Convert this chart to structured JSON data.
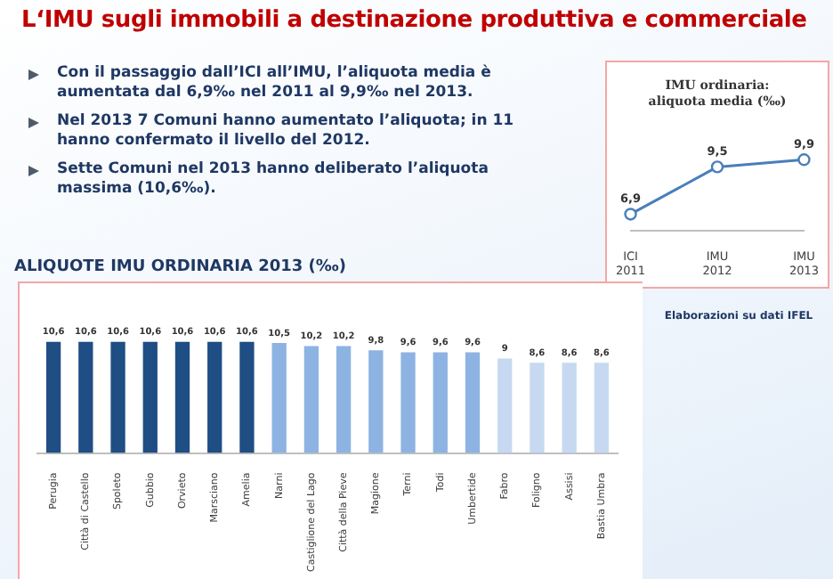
{
  "chart_data": [
    {
      "type": "other",
      "title": "L‘IMU sugli immobili a destinazione produttiva e commerciale",
      "annotations": [
        "Con il passaggio dall’ICI all’IMU, l’aliquota media è aumentata dal 6,9‰ nel 2011 al 9,9‰ nel 2013.",
        "Nel 2013 7 Comuni hanno aumentato l’aliquota; in 11 hanno confermato il livello del 2012.",
        "Sette Comuni nel 2013 hanno deliberato l’aliquota massima (10,6‰)."
      ]
    },
    {
      "type": "line",
      "title": "IMU ordinaria: aliquota media (‰)",
      "categories": [
        "ICI 2011",
        "IMU 2012",
        "IMU 2013"
      ],
      "values": [
        6.9,
        9.5,
        9.9
      ],
      "value_labels": [
        "6,9",
        "9,5",
        "9,9"
      ],
      "color": "#4a7ebb",
      "marker": "circle",
      "tick_labels": "x",
      "annotations": [
        "Elaborazioni su dati IFEL"
      ]
    },
    {
      "type": "bar",
      "title": "ALIQUOTE IMU ORDINARIA 2013 (‰)",
      "categories": [
        "Perugia",
        "Città di Castello",
        "Spoleto",
        "Gubbio",
        "Orvieto",
        "Marsciano",
        "Amelia",
        "Narni",
        "Castiglione del Lago",
        "Città della Pieve",
        "Magione",
        "Terni",
        "Todi",
        "Umbertide",
        "Fabro",
        "Foligno",
        "Assisi",
        "Bastia Umbra"
      ],
      "values": [
        10.6,
        10.6,
        10.6,
        10.6,
        10.6,
        10.6,
        10.6,
        10.5,
        10.2,
        10.2,
        9.8,
        9.6,
        9.6,
        9.6,
        9,
        8.6,
        8.6,
        8.6
      ],
      "value_labels": [
        "10,6",
        "10,6",
        "10,6",
        "10,6",
        "10,6",
        "10,6",
        "10,6",
        "10,5",
        "10,2",
        "10,2",
        "9,8",
        "9,6",
        "9,6",
        "9,6",
        "9",
        "8,6",
        "8,6",
        "8,6"
      ],
      "colors": [
        "#1f4e84",
        "#1f4e84",
        "#1f4e84",
        "#1f4e84",
        "#1f4e84",
        "#1f4e84",
        "#1f4e84",
        "#8db3e2",
        "#8db3e2",
        "#8db3e2",
        "#8db3e2",
        "#8db3e2",
        "#8db3e2",
        "#8db3e2",
        "#c6d9f1",
        "#c6d9f1",
        "#c6d9f1",
        "#c6d9f1"
      ],
      "tick_labels": "x"
    }
  ]
}
